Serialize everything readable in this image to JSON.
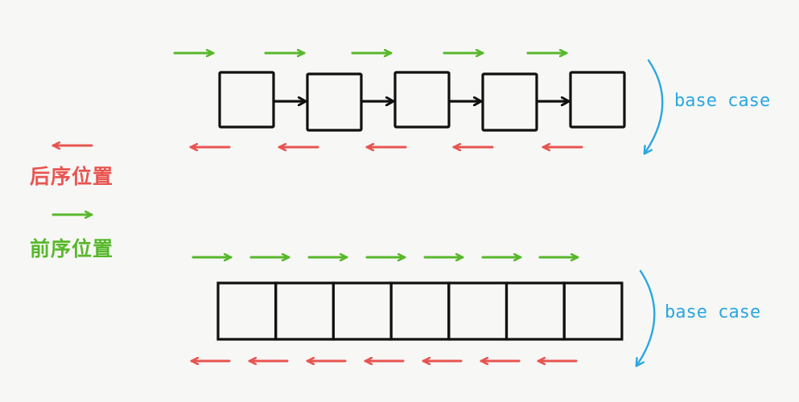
{
  "colors": {
    "forward_arrow": "#57b82b",
    "backward_arrow": "#e85450",
    "base_case": "#2aa7e0",
    "box_stroke": "#111111",
    "background": "#f7f7f5"
  },
  "legend": {
    "postorder_label": "后序位置",
    "preorder_label": "前序位置",
    "postorder_icon": "left-arrow-red",
    "preorder_icon": "right-arrow-green"
  },
  "linked_list": {
    "node_count": 5,
    "base_case_label": "base case"
  },
  "array": {
    "cell_count": 7,
    "base_case_label": "base case"
  }
}
